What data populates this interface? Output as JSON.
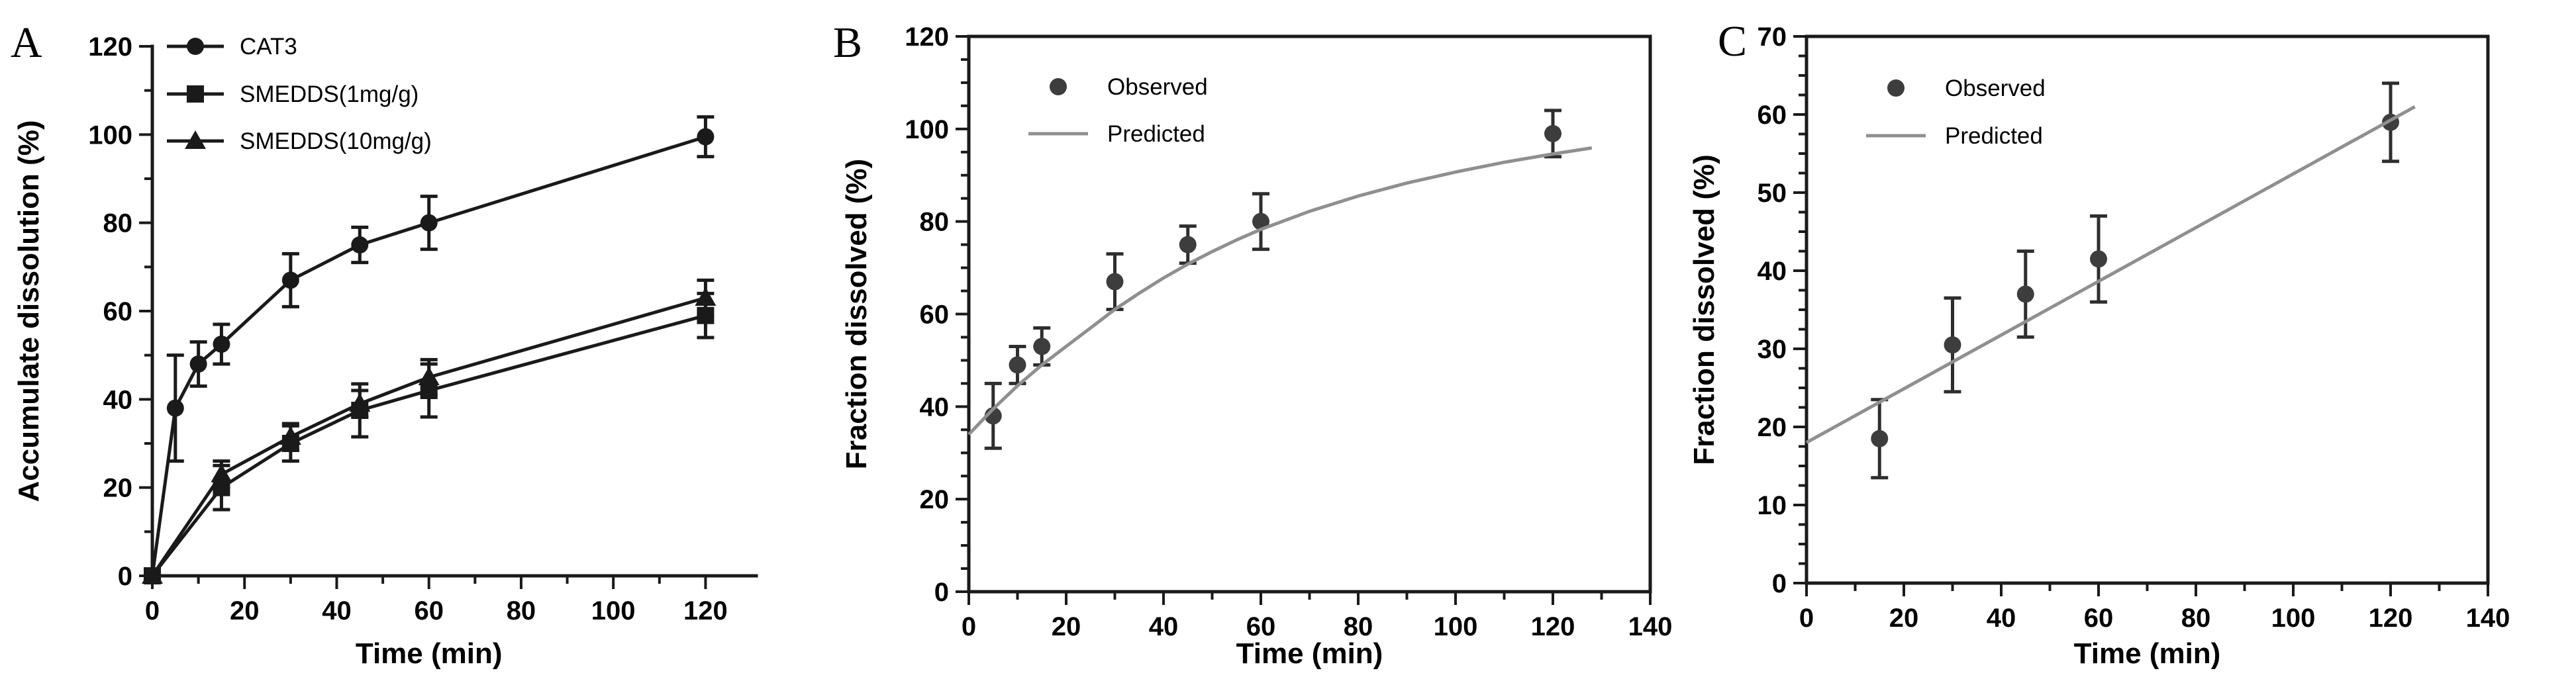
{
  "figure": {
    "background": "#ffffff",
    "text_color": "#000000",
    "frame_color": "#1a1a1a",
    "panel_letters": [
      "A",
      "B",
      "C"
    ]
  },
  "chart_data": [
    {
      "id": "A",
      "type": "line",
      "panel_label": "A",
      "title": "",
      "xlabel": "Time (min)",
      "ylabel": "Accumulate dissolution (%)",
      "xlim": [
        0,
        131
      ],
      "ylim": [
        0,
        120
      ],
      "x_ticks": [
        0,
        20,
        40,
        60,
        80,
        100,
        120
      ],
      "x_minor_step": 10,
      "y_ticks": [
        0,
        20,
        40,
        60,
        80,
        100,
        120
      ],
      "y_minor_step": 10,
      "frame": "axes-only",
      "grid": false,
      "legend_position": "upper-left",
      "series": [
        {
          "name": "CAT3",
          "marker": "circle",
          "legend_style": "line-marker",
          "connect": true,
          "color": "#1a1a1a",
          "error_color": "#1a1a1a",
          "x": [
            0,
            5,
            10,
            15,
            30,
            45,
            60,
            120
          ],
          "y": [
            0,
            38,
            48,
            52.5,
            67,
            75,
            80,
            99.5
          ],
          "yerr": [
            0,
            12,
            5,
            4.5,
            6,
            4,
            6,
            4.5
          ]
        },
        {
          "name": "SMEDDS(1mg/g)",
          "marker": "square",
          "legend_style": "line-marker",
          "connect": true,
          "color": "#1a1a1a",
          "error_color": "#1a1a1a",
          "x": [
            0,
            15,
            30,
            45,
            60,
            120
          ],
          "y": [
            0,
            20,
            30,
            37.5,
            42,
            59
          ],
          "yerr": [
            0,
            5,
            4,
            6,
            6,
            5
          ]
        },
        {
          "name": "SMEDDS(10mg/g)",
          "marker": "triangle",
          "legend_style": "line-marker",
          "connect": true,
          "color": "#1a1a1a",
          "error_color": "#1a1a1a",
          "x": [
            0,
            15,
            30,
            45,
            60,
            120
          ],
          "y": [
            0,
            23,
            31.5,
            39,
            45,
            63
          ],
          "yerr": [
            0,
            3,
            3,
            3,
            4,
            4
          ]
        }
      ]
    },
    {
      "id": "B",
      "type": "scatter",
      "panel_label": "B",
      "title": "",
      "xlabel": "Time (min)",
      "ylabel": "Fraction dissolved (%)",
      "xlim": [
        0,
        140
      ],
      "ylim": [
        0,
        120
      ],
      "x_ticks": [
        0,
        20,
        40,
        60,
        80,
        100,
        120,
        140
      ],
      "x_minor_step": 10,
      "y_ticks": [
        0,
        20,
        40,
        60,
        80,
        100,
        120
      ],
      "y_minor_step": 5,
      "frame": "box",
      "grid": false,
      "legend_position": "upper-left",
      "series": [
        {
          "name": "Observed",
          "marker": "circle",
          "legend_style": "marker",
          "connect": false,
          "color": "#3d3d3d",
          "error_color": "#2e2e2e",
          "x": [
            5,
            10,
            15,
            30,
            45,
            60,
            120
          ],
          "y": [
            38,
            49,
            53,
            67,
            75,
            80,
            99
          ],
          "yerr": [
            7,
            4,
            4,
            6,
            4,
            6,
            5
          ]
        },
        {
          "name": "Predicted",
          "marker": "none",
          "legend_style": "line",
          "connect": true,
          "color": "#8f8f8f",
          "error_color": "#8f8f8f",
          "x": [
            0,
            5,
            10,
            15,
            20,
            25,
            30,
            35,
            40,
            45,
            50,
            55,
            60,
            70,
            80,
            90,
            100,
            110,
            120,
            128
          ],
          "y": [
            34,
            39.5,
            44.5,
            49,
            53,
            57,
            61,
            64.5,
            67.8,
            70.8,
            73.5,
            76,
            78.3,
            82.2,
            85.5,
            88.3,
            90.7,
            92.8,
            94.6,
            95.9
          ]
        }
      ]
    },
    {
      "id": "C",
      "type": "scatter",
      "panel_label": "C",
      "title": "",
      "xlabel": "Time (min)",
      "ylabel": "Fraction dissolved (%)",
      "xlim": [
        0,
        140
      ],
      "ylim": [
        0,
        70
      ],
      "x_ticks": [
        0,
        20,
        40,
        60,
        80,
        100,
        120,
        140
      ],
      "x_minor_step": 10,
      "y_ticks": [
        0,
        10,
        20,
        30,
        40,
        50,
        60,
        70
      ],
      "y_minor_step": 2.5,
      "frame": "box",
      "grid": false,
      "legend_position": "upper-left",
      "series": [
        {
          "name": "Observed",
          "marker": "circle",
          "legend_style": "marker",
          "connect": false,
          "color": "#3d3d3d",
          "error_color": "#2e2e2e",
          "x": [
            15,
            30,
            45,
            60,
            120
          ],
          "y": [
            18.5,
            30.5,
            37,
            41.5,
            59
          ],
          "yerr": [
            5,
            6,
            5.5,
            5.5,
            5
          ]
        },
        {
          "name": "Predicted",
          "marker": "none",
          "legend_style": "line",
          "connect": true,
          "color": "#8f8f8f",
          "error_color": "#8f8f8f",
          "x": [
            0,
            125
          ],
          "y": [
            18,
            61
          ]
        }
      ]
    }
  ]
}
